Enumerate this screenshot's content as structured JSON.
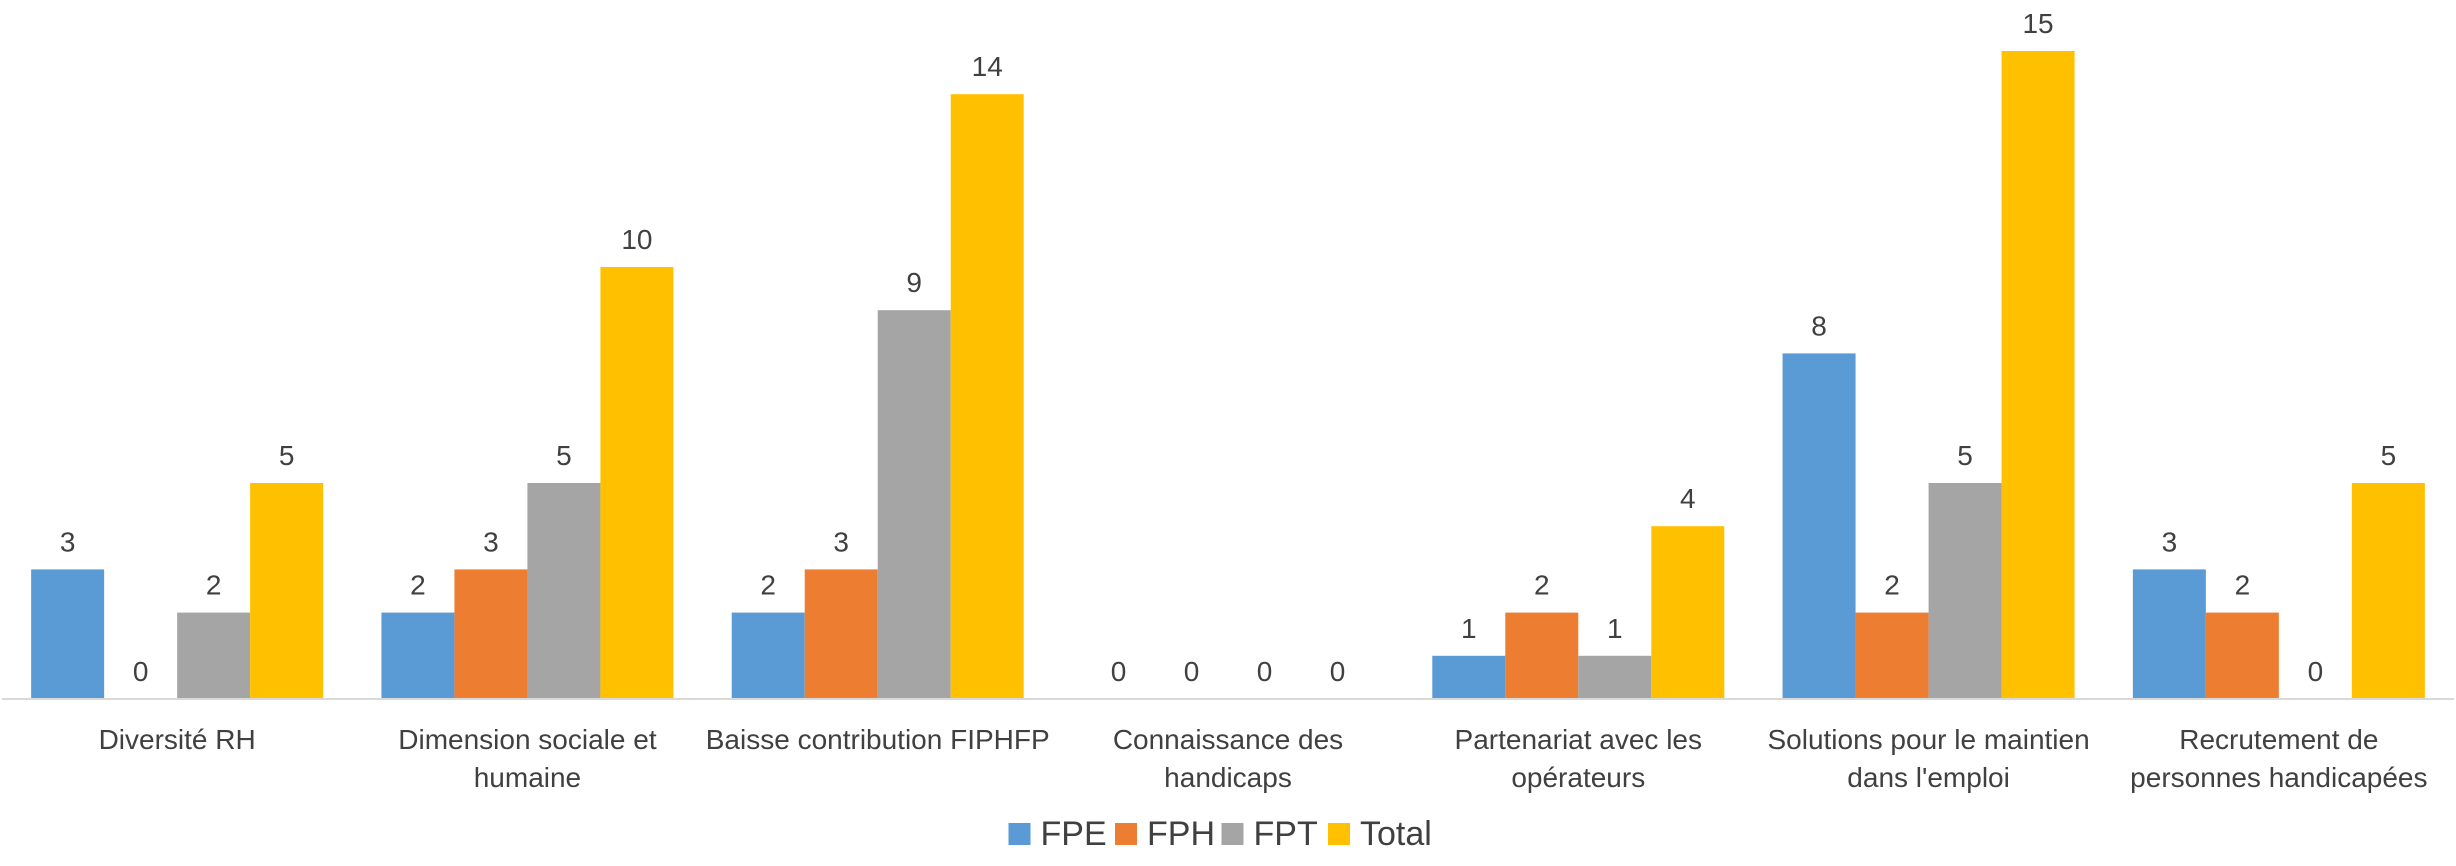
{
  "chart_data": {
    "type": "bar",
    "title": "",
    "xlabel": "",
    "ylabel": "",
    "ylim": [
      0,
      15.5
    ],
    "grid": false,
    "legend_position": "bottom",
    "categories": [
      [
        "Diversité RH"
      ],
      [
        "Dimension sociale et",
        "humaine"
      ],
      [
        "Baisse contribution FIPHFP"
      ],
      [
        "Connaissance des",
        "handicaps"
      ],
      [
        "Partenariat avec les",
        "opérateurs"
      ],
      [
        "Solutions pour le maintien",
        "dans l'emploi"
      ],
      [
        "Recrutement de",
        "personnes handicapées"
      ]
    ],
    "series": [
      {
        "name": "FPE",
        "color": "#5B9BD5",
        "values": [
          3,
          2,
          2,
          0,
          1,
          8,
          3
        ]
      },
      {
        "name": "FPH",
        "color": "#ED7D31",
        "values": [
          0,
          3,
          3,
          0,
          2,
          2,
          2
        ]
      },
      {
        "name": "FPT",
        "color": "#A5A5A5",
        "values": [
          2,
          5,
          9,
          0,
          1,
          5,
          0
        ]
      },
      {
        "name": "Total",
        "color": "#FFC000",
        "values": [
          5,
          10,
          14,
          0,
          4,
          15,
          5
        ]
      }
    ]
  }
}
